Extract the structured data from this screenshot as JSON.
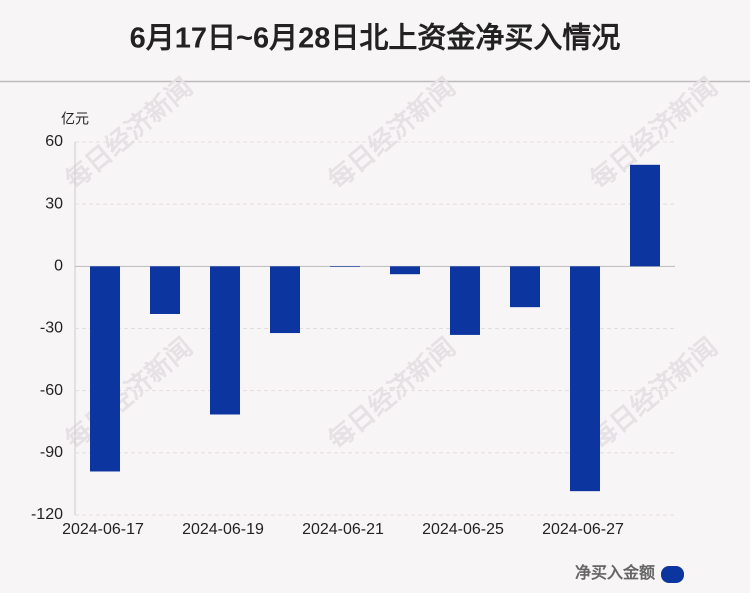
{
  "chart_data": {
    "type": "bar",
    "title": "6月17日~6月28日北上资金净买入情况",
    "y_unit": "亿元",
    "watermark": "每日经济新闻",
    "categories": [
      "2024-06-17",
      null,
      "2024-06-19",
      null,
      "2024-06-21",
      null,
      "2024-06-25",
      null,
      "2024-06-27",
      null
    ],
    "series": [
      {
        "name": "净买入金额",
        "color": "#0d35a0",
        "values": [
          -99,
          -23,
          -71.5,
          -32.2,
          -0.3,
          -3.8,
          -33.1,
          -19.7,
          -108.5,
          49
        ]
      }
    ],
    "ylim": [
      -120,
      60
    ],
    "yticks": [
      60,
      30,
      0,
      -30,
      -60,
      -90,
      -120
    ],
    "grid": true,
    "legend": "bottom-right"
  }
}
